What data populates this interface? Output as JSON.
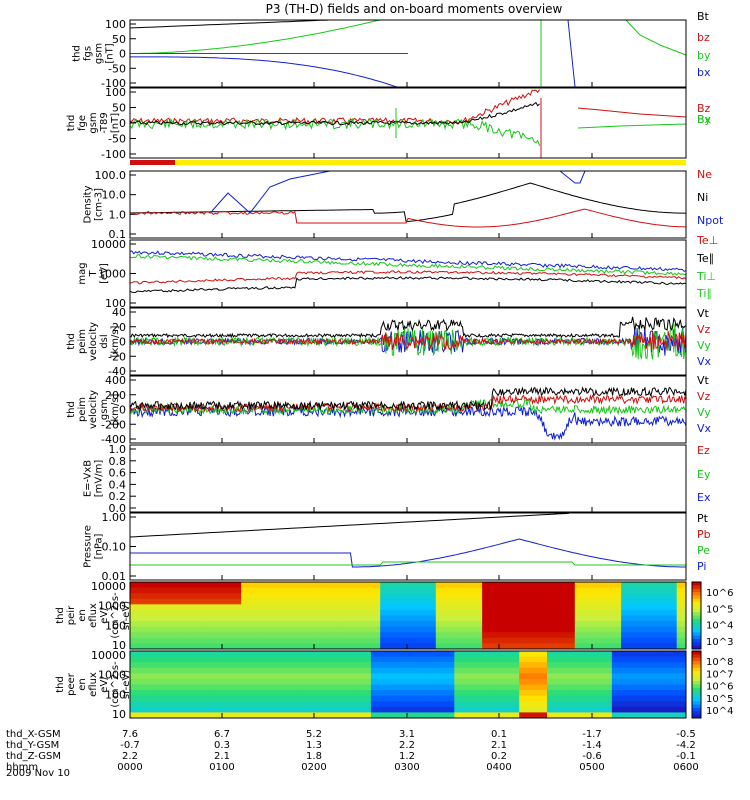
{
  "title": "P3 (TH-D) fields and on-board moments overview",
  "date_label": "2009 Nov 10",
  "colors": {
    "black": "#000000",
    "red": "#d01010",
    "green": "#18c818",
    "blue": "#1020d0",
    "yellow": "#ffee00",
    "frame": "#000000"
  },
  "chart_data": {
    "type": "line",
    "x_axis": {
      "rows": [
        {
          "label": "thd_X-GSM",
          "values": [
            "7.6",
            "6.7",
            "5.2",
            "3.1",
            "0.1",
            "-1.7",
            "-0.5"
          ]
        },
        {
          "label": "thd_Y-GSM",
          "values": [
            "-0.7",
            "0.3",
            "1.3",
            "2.2",
            "2.1",
            "-1.4",
            "-4.2"
          ]
        },
        {
          "label": "thd_Z-GSM",
          "values": [
            "2.2",
            "2.1",
            "1.8",
            "1.2",
            "0.2",
            "-0.6",
            "-0.1"
          ]
        },
        {
          "label": "hhmm",
          "values": [
            "0000",
            "0100",
            "0200",
            "0300",
            "0400",
            "0500",
            "0600"
          ]
        }
      ]
    },
    "panels": [
      {
        "id": "fgs",
        "ylabel": [
          "thd",
          "fgs",
          "gsm",
          "[nT]"
        ],
        "yticks": [
          "100",
          "50",
          "0",
          "-50",
          "-100"
        ],
        "ylim": [
          -100,
          100
        ],
        "legend": [
          {
            "name": "Bt",
            "color": "black"
          },
          {
            "name": "bz",
            "color": "red"
          },
          {
            "name": "by",
            "color": "green"
          },
          {
            "name": "bx",
            "color": "blue"
          }
        ]
      },
      {
        "id": "fge",
        "ylabel": [
          "thd",
          "fge",
          "gsm",
          "-T89",
          "[nT]"
        ],
        "yticks": [
          "100",
          "50",
          "0",
          "-50",
          "-100"
        ],
        "ylim": [
          -120,
          120
        ],
        "legend": [
          {
            "name": "Bz",
            "color": "red"
          },
          {
            "name": "By",
            "color": "green"
          },
          {
            "name": "Bx",
            "color": "green"
          }
        ]
      },
      {
        "id": "density",
        "ylabel": [
          "Density",
          "[cm-3]"
        ],
        "yticks": [
          "100.0",
          "10.0",
          "1.0",
          "0.1"
        ],
        "log": true,
        "legend": [
          {
            "name": "Ne",
            "color": "red"
          },
          {
            "name": "Ni",
            "color": "black"
          },
          {
            "name": "Npot",
            "color": "blue"
          }
        ]
      },
      {
        "id": "temp",
        "ylabel": [
          "mag",
          "T",
          "[eV]"
        ],
        "yticks": [
          "10000",
          "1000",
          "100"
        ],
        "log": true,
        "legend": [
          {
            "name": "Te⊥",
            "color": "red"
          },
          {
            "name": "Te∥",
            "color": "black"
          },
          {
            "name": "Ti⊥",
            "color": "green"
          },
          {
            "name": "Ti∥",
            "color": "green"
          }
        ]
      },
      {
        "id": "peimvel",
        "ylabel": [
          "thd",
          "peim",
          "velocity",
          "dsl",
          "[km/s]"
        ],
        "yticks": [
          "40",
          "20",
          "0",
          "-20",
          "-40"
        ],
        "ylim": [
          -40,
          40
        ],
        "legend": [
          {
            "name": "Vt",
            "color": "black"
          },
          {
            "name": "Vz",
            "color": "red"
          },
          {
            "name": "Vy",
            "color": "green"
          },
          {
            "name": "Vx",
            "color": "blue"
          }
        ]
      },
      {
        "id": "peimgsm",
        "ylabel": [
          "thd",
          "peim",
          "velocity",
          "gsm",
          "[km/s]"
        ],
        "yticks": [
          "400",
          "200",
          "0",
          "-200",
          "-400"
        ],
        "ylim": [
          -400,
          400
        ],
        "legend": [
          {
            "name": "Vt",
            "color": "black"
          },
          {
            "name": "Vz",
            "color": "red"
          },
          {
            "name": "Vy",
            "color": "green"
          },
          {
            "name": "Vx",
            "color": "blue"
          }
        ]
      },
      {
        "id": "efield",
        "ylabel": [
          "E=-VxB",
          "[mV/m]"
        ],
        "yticks": [
          "1.0",
          "0.8",
          "0.6",
          "0.4",
          "0.2",
          "0.0"
        ],
        "ylim": [
          0,
          1
        ],
        "legend": [
          {
            "name": "Ez",
            "color": "red"
          },
          {
            "name": "Ey",
            "color": "green"
          },
          {
            "name": "Ex",
            "color": "blue"
          }
        ]
      },
      {
        "id": "pressure",
        "ylabel": [
          "Pressure",
          "[nPa]"
        ],
        "yticks": [
          "1.00",
          "0.10",
          "0.01"
        ],
        "log": true,
        "legend": [
          {
            "name": "Pt",
            "color": "black"
          },
          {
            "name": "Pb",
            "color": "red"
          },
          {
            "name": "Pe",
            "color": "green"
          },
          {
            "name": "Pi",
            "color": "blue"
          }
        ]
      },
      {
        "id": "ion_spec",
        "ylabel": [
          "thd",
          "peir",
          "en",
          "eflux",
          "eV/",
          "(cm^2-s-",
          "sr-eV)"
        ],
        "yticks": [
          "10000",
          "1000",
          "100",
          "10"
        ],
        "colorbar_ticks": [
          "10^6",
          "10^5",
          "10^4",
          "10^3"
        ]
      },
      {
        "id": "ele_spec",
        "ylabel": [
          "thd",
          "peer",
          "en",
          "eflux",
          "eV/",
          "(cm^2-s-",
          "sr-eV)"
        ],
        "yticks": [
          "10000",
          "1000",
          "100",
          "10"
        ],
        "colorbar_ticks": [
          "10^8",
          "10^7",
          "10^6",
          "10^5",
          "10^4"
        ]
      }
    ]
  }
}
